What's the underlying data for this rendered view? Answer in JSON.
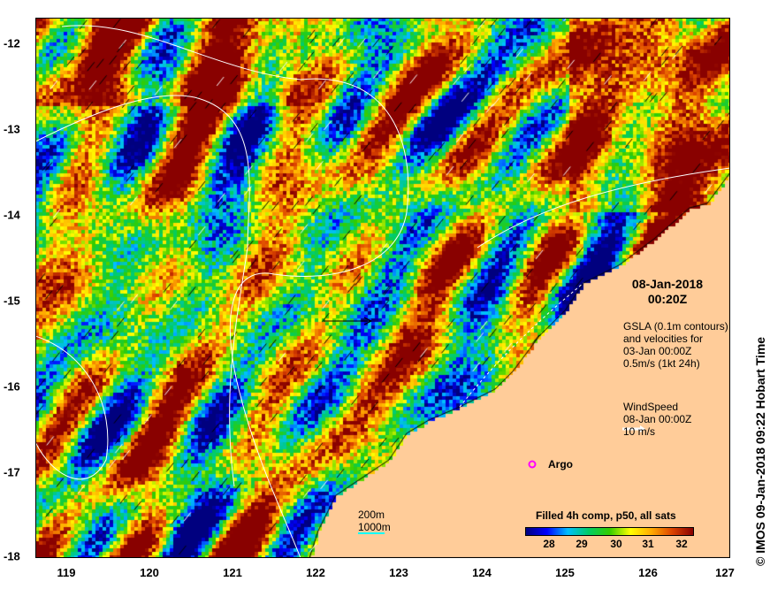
{
  "map": {
    "title_date": "08-Jan-2018",
    "title_time": "00:20Z",
    "x_ticks": [
      "119",
      "120",
      "121",
      "122",
      "123",
      "124",
      "125",
      "126",
      "127"
    ],
    "y_ticks": [
      "-12",
      "-13",
      "-14",
      "-15",
      "-16",
      "-17",
      "-18"
    ],
    "lon_range": [
      118.6,
      127
    ],
    "lat_range": [
      -18,
      -11.7
    ],
    "land_color": "#FFCC99",
    "gsla": {
      "line1": "GSLA (0.1m contours)",
      "line2": "and velocities for",
      "line3": "03-Jan 00:00Z",
      "line4": "0.5m/s (1kt 24h)"
    },
    "wind": {
      "line1": "WindSpeed",
      "line2": "08-Jan 00:00Z",
      "line3": "10 m/s"
    },
    "argo_label": "Argo",
    "argo_color": "#FF00FF",
    "depth": {
      "d200": "200m",
      "d1000": "1000m",
      "color1000": "#00FFFF"
    },
    "colorbar": {
      "title": "Filled 4h comp, p50, all sats",
      "ticks": [
        "28",
        "29",
        "30",
        "31",
        "32"
      ],
      "range": [
        27.5,
        32.3
      ],
      "colors": [
        "#00007f",
        "#0000ff",
        "#00bfff",
        "#00cc66",
        "#33cc00",
        "#ffff00",
        "#ffaa00",
        "#dd4400",
        "#880000"
      ]
    },
    "credit": "©  IMOS 09-Jan-2018 09:22 Hobart Time"
  }
}
